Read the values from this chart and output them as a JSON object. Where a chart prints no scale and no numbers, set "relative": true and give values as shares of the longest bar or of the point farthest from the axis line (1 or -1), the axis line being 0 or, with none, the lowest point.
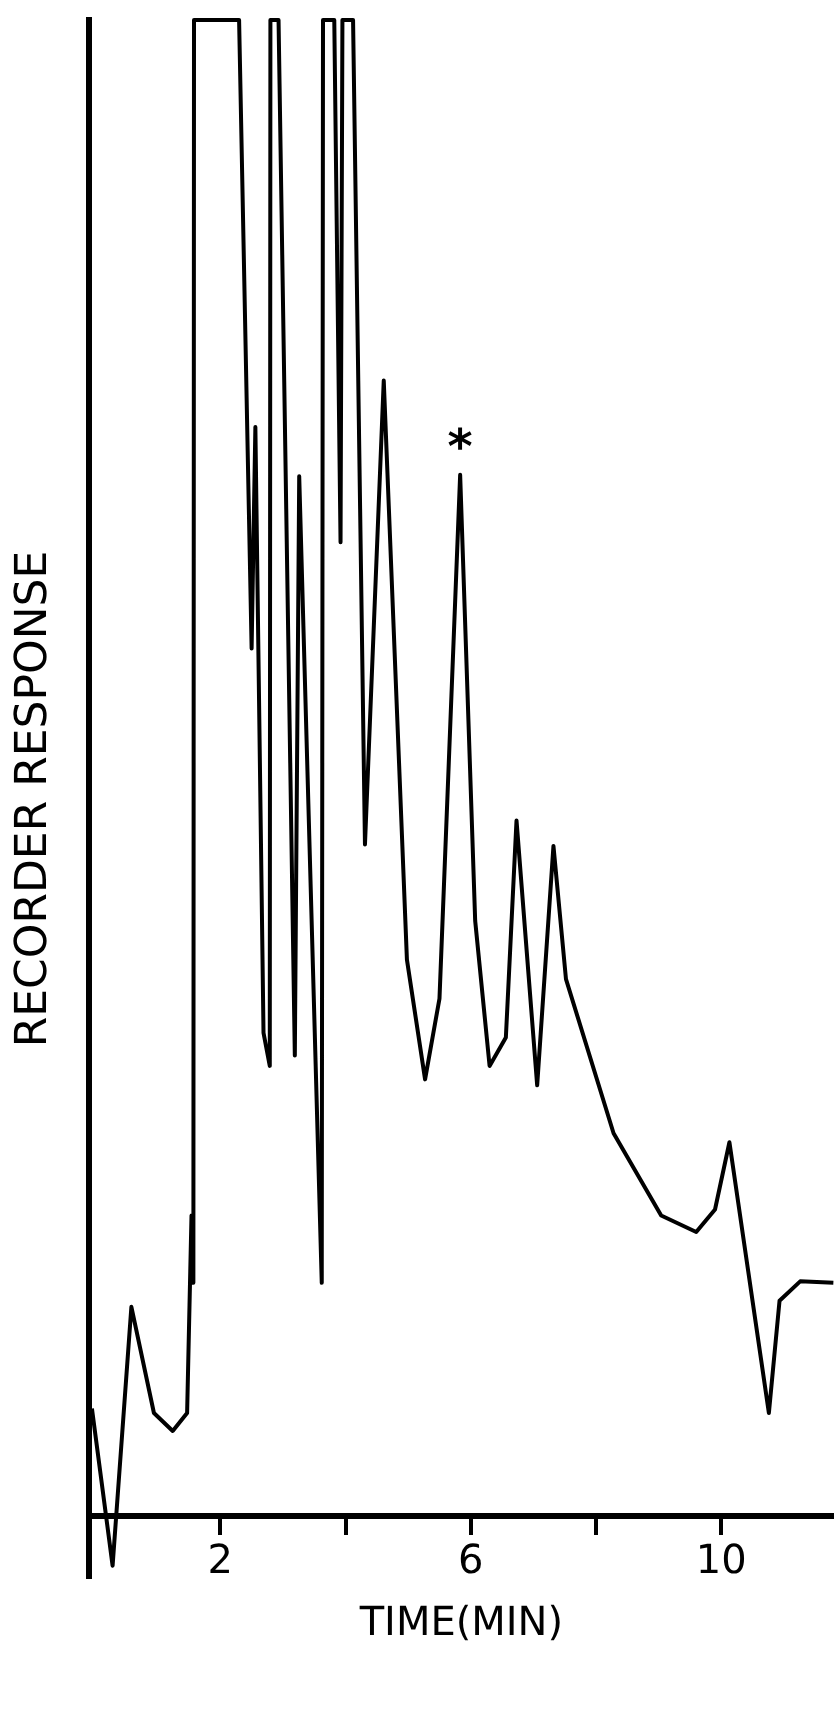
{
  "chart_data": {
    "type": "line",
    "relative": true,
    "xlabel": "TIME(MIN)",
    "ylabel": "RECORDER RESPONSE",
    "xlim": [
      -0.1,
      11.8
    ],
    "xticks": [
      2,
      {
        "value": 4,
        "label": null
      },
      6,
      {
        "value": 8,
        "label": null
      },
      10
    ],
    "grid": false,
    "legend": false,
    "marker": "none",
    "line_style": "solid",
    "annotations": [
      {
        "text": "*",
        "x": 5.83,
        "y": 0.696
      }
    ],
    "series": [
      {
        "color": "#000000",
        "x": [
          -0.05,
          0.28,
          0.58,
          0.94,
          1.24,
          1.47,
          1.54,
          1.57,
          1.58,
          2.3,
          2.5,
          2.56,
          2.69,
          2.79,
          2.8,
          2.93,
          3.19,
          3.26,
          3.62,
          3.64,
          3.82,
          3.92,
          3.95,
          4.12,
          4.31,
          4.61,
          4.98,
          5.27,
          5.5,
          5.83,
          6.07,
          6.3,
          6.56,
          6.73,
          7.06,
          7.32,
          7.52,
          8.28,
          9.04,
          9.6,
          9.9,
          10.13,
          10.76,
          10.93,
          11.26,
          11.79
        ],
        "values": [
          0.072,
          -0.033,
          0.14,
          0.069,
          0.057,
          0.069,
          0.201,
          0.156,
          1,
          1,
          0.58,
          0.728,
          0.323,
          0.301,
          1,
          1,
          0.308,
          0.695,
          0.156,
          1,
          1,
          0.651,
          1,
          1,
          0.449,
          0.759,
          0.372,
          0.292,
          0.346,
          0.696,
          0.398,
          0.301,
          0.32,
          0.465,
          0.288,
          0.448,
          0.359,
          0.256,
          0.201,
          0.19,
          0.205,
          0.25,
          0.069,
          0.144,
          0.157,
          0.156
        ]
      }
    ]
  }
}
